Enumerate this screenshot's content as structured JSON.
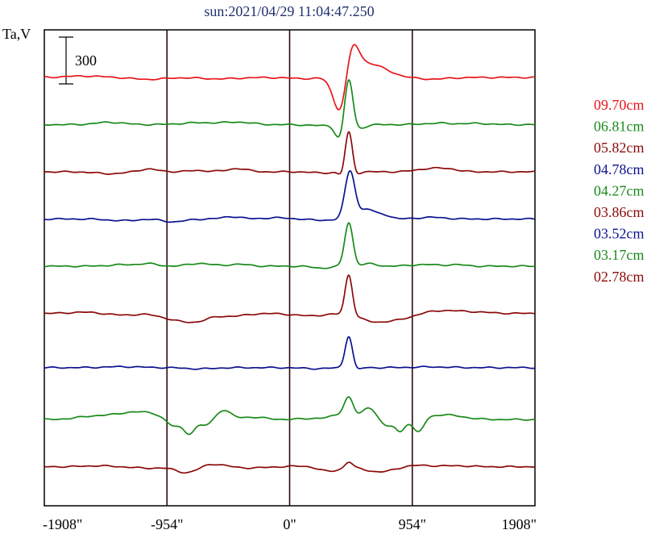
{
  "title": "sun:2021/04/29 11:04:47.250",
  "colors": {
    "title": "#1f2f6e",
    "axis": "#000000",
    "red": "#e8161c",
    "green": "#1a8a1a",
    "darkred": "#8b0a0a",
    "blue": "#0c128f"
  },
  "chart_data": {
    "type": "line",
    "title": "sun:2021/04/29 11:04:47.250",
    "ylabel": "Ta,V",
    "scale_bar_label": "300",
    "x_ticks": [
      "-1908\"",
      "-954\"",
      "0\"",
      "954\"",
      "1908\""
    ],
    "x_tick_values": [
      -1908,
      -954,
      0,
      954,
      1908
    ],
    "xlim": [
      -1908,
      1908
    ],
    "vertical_lines_at": [
      -954,
      0,
      954
    ],
    "grid": false,
    "legend_position": "right",
    "series": [
      {
        "name": "09.70cm",
        "color": "red",
        "baseline": 0,
        "features": [
          [
            -1600,
            6,
            200
          ],
          [
            -1100,
            -8,
            180
          ],
          [
            -550,
            -6,
            200
          ],
          [
            150,
            -5,
            200
          ],
          [
            1100,
            -7,
            180
          ],
          [
            400,
            -180,
            80
          ],
          [
            480,
            140,
            70
          ],
          [
            600,
            60,
            200
          ]
        ]
      },
      {
        "name": "06.81cm",
        "color": "green",
        "baseline": -200,
        "features": [
          [
            -1400,
            10,
            150
          ],
          [
            -700,
            8,
            200
          ],
          [
            -400,
            10,
            150
          ],
          [
            250,
            -4,
            150
          ],
          [
            1150,
            6,
            150
          ],
          [
            1450,
            5,
            150
          ],
          [
            390,
            -60,
            50
          ],
          [
            460,
            210,
            45
          ],
          [
            520,
            -20,
            80
          ]
        ]
      },
      {
        "name": "05.82cm",
        "color": "darkred",
        "baseline": -400,
        "features": [
          [
            -1400,
            -8,
            150
          ],
          [
            -1100,
            12,
            100
          ],
          [
            -700,
            5,
            150
          ],
          [
            -400,
            14,
            100
          ],
          [
            250,
            -5,
            100
          ],
          [
            1100,
            14,
            150
          ],
          [
            1250,
            8,
            100
          ],
          [
            410,
            -20,
            40
          ],
          [
            460,
            175,
            40
          ],
          [
            510,
            -15,
            40
          ]
        ]
      },
      {
        "name": "04.78cm",
        "color": "blue",
        "baseline": -600,
        "features": [
          [
            -1300,
            -7,
            150
          ],
          [
            -900,
            -12,
            120
          ],
          [
            -450,
            10,
            100
          ],
          [
            -100,
            5,
            150
          ],
          [
            250,
            -5,
            150
          ],
          [
            1100,
            7,
            150
          ],
          [
            470,
            205,
            55
          ],
          [
            600,
            40,
            70
          ],
          [
            720,
            20,
            80
          ]
        ]
      },
      {
        "name": "04.27cm",
        "color": "green",
        "baseline": -800,
        "features": [
          [
            -1300,
            6,
            150
          ],
          [
            -1100,
            10,
            100
          ],
          [
            -700,
            12,
            120
          ],
          [
            -400,
            8,
            120
          ],
          [
            250,
            -8,
            100
          ],
          [
            1050,
            7,
            150
          ],
          [
            1300,
            6,
            100
          ],
          [
            460,
            185,
            45
          ],
          [
            620,
            10,
            80
          ]
        ]
      },
      {
        "name": "03.86cm",
        "color": "darkred",
        "baseline": -1000,
        "features": [
          [
            -1600,
            5,
            150
          ],
          [
            -1300,
            -7,
            150
          ],
          [
            -850,
            -30,
            180
          ],
          [
            -700,
            -18,
            120
          ],
          [
            -450,
            -12,
            150
          ],
          [
            150,
            -10,
            180
          ],
          [
            650,
            -32,
            150
          ],
          [
            850,
            -22,
            150
          ],
          [
            1200,
            12,
            180
          ],
          [
            1450,
            5,
            150
          ],
          [
            460,
            170,
            40
          ]
        ]
      },
      {
        "name": "03.52cm",
        "color": "blue",
        "baseline": -1230,
        "features": [
          [
            -1300,
            4,
            200
          ],
          [
            -700,
            -5,
            150
          ],
          [
            200,
            -4,
            150
          ],
          [
            1100,
            3,
            200
          ],
          [
            460,
            135,
            40
          ],
          [
            520,
            -10,
            40
          ]
        ]
      },
      {
        "name": "03.17cm",
        "color": "green",
        "baseline": -1450,
        "features": [
          [
            -1500,
            15,
            200
          ],
          [
            -1200,
            30,
            180
          ],
          [
            -1050,
            10,
            100
          ],
          [
            -900,
            -30,
            80
          ],
          [
            -780,
            -55,
            60
          ],
          [
            -650,
            -25,
            80
          ],
          [
            -520,
            40,
            80
          ],
          [
            -300,
            10,
            150
          ],
          [
            200,
            5,
            150
          ],
          [
            400,
            20,
            100
          ],
          [
            460,
            80,
            50
          ],
          [
            620,
            50,
            80
          ],
          [
            750,
            -30,
            70
          ],
          [
            860,
            -50,
            50
          ],
          [
            1000,
            -60,
            60
          ],
          [
            1200,
            20,
            200
          ]
        ]
      },
      {
        "name": "02.78cm",
        "color": "darkred",
        "baseline": -1650,
        "features": [
          [
            -1500,
            4,
            150
          ],
          [
            -1100,
            -6,
            150
          ],
          [
            -800,
            -25,
            120
          ],
          [
            -600,
            12,
            120
          ],
          [
            -300,
            -5,
            150
          ],
          [
            150,
            4,
            150
          ],
          [
            300,
            -20,
            120
          ],
          [
            700,
            -22,
            150
          ],
          [
            1000,
            6,
            150
          ],
          [
            1300,
            4,
            150
          ],
          [
            460,
            25,
            40
          ]
        ]
      }
    ]
  }
}
